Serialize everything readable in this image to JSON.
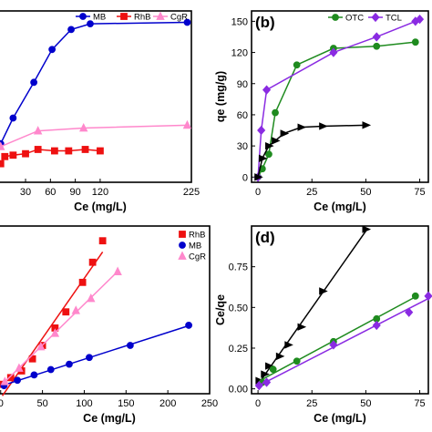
{
  "chart_data": [
    {
      "panel": "",
      "type": "line",
      "xlabel": "Ce (mg/L)",
      "ylabel": "",
      "xlim": [
        0,
        225
      ],
      "xticks": [
        "30",
        "60",
        "90",
        "120",
        "225"
      ],
      "legend": "top",
      "series": [
        {
          "name": "MB",
          "color": "#0000cc",
          "marker": "circle",
          "points": [
            [
              0,
              42
            ],
            [
              15,
              60
            ],
            [
              40,
              85
            ],
            [
              62,
              108
            ],
            [
              85,
              122
            ],
            [
              108,
              126
            ],
            [
              225,
              127
            ]
          ]
        },
        {
          "name": "RhB",
          "color": "#ee1111",
          "marker": "square",
          "points": [
            [
              0,
              28
            ],
            [
              5,
              33
            ],
            [
              15,
              34
            ],
            [
              30,
              35
            ],
            [
              45,
              38
            ],
            [
              65,
              37
            ],
            [
              82,
              37
            ],
            [
              102,
              38
            ],
            [
              120,
              37
            ]
          ]
        },
        {
          "name": "CgR",
          "color": "#ff88cc",
          "marker": "triangle",
          "points": [
            [
              0,
              40
            ],
            [
              45,
              51
            ],
            [
              100,
              53
            ],
            [
              225,
              55
            ]
          ]
        }
      ]
    },
    {
      "panel": "(b)",
      "type": "line",
      "xlabel": "Ce (mg/L)",
      "ylabel": "qe (mg/g)",
      "xlim": [
        0,
        75
      ],
      "ylim": [
        0,
        160
      ],
      "xticks": [
        0,
        25,
        50,
        75
      ],
      "yticks": [
        0,
        30,
        60,
        90,
        120,
        150
      ],
      "legend": "top",
      "series": [
        {
          "name": "OTC",
          "color": "#1f8b1f",
          "marker": "circle",
          "points": [
            [
              0,
              0
            ],
            [
              2,
              8
            ],
            [
              5,
              22
            ],
            [
              8,
              62
            ],
            [
              18,
              108
            ],
            [
              35,
              124
            ],
            [
              55,
              126
            ],
            [
              73,
              130
            ]
          ]
        },
        {
          "name": "TCL",
          "color": "#8a2be2",
          "marker": "diamond",
          "points": [
            [
              0,
              0
            ],
            [
              1.5,
              45
            ],
            [
              4,
              84
            ],
            [
              35,
              120
            ],
            [
              55,
              135
            ],
            [
              73,
              150
            ],
            [
              75,
              152
            ]
          ]
        },
        {
          "name": "",
          "color": "#000000",
          "marker": "right-triangle",
          "points": [
            [
              0,
              0
            ],
            [
              2,
              18
            ],
            [
              5,
              30
            ],
            [
              8,
              35
            ],
            [
              12,
              42
            ],
            [
              20,
              48
            ],
            [
              30,
              49
            ],
            [
              50,
              50
            ]
          ]
        }
      ]
    },
    {
      "panel": "",
      "type": "scatter",
      "xlabel": "Ce (mg/L)",
      "ylabel": "",
      "xlim": [
        0,
        250
      ],
      "xticks": [
        0,
        50,
        100,
        150,
        200,
        250
      ],
      "legend": "top-right",
      "series": [
        {
          "name": "RhB",
          "color": "#ee1111",
          "marker": "square",
          "points": [
            [
              2,
              0.02
            ],
            [
              12,
              0.07
            ],
            [
              25,
              0.12
            ],
            [
              38,
              0.21
            ],
            [
              50,
              0.31
            ],
            [
              65,
              0.44
            ],
            [
              78,
              0.56
            ],
            [
              98,
              0.78
            ],
            [
              110,
              0.93
            ],
            [
              122,
              1.09
            ]
          ]
        },
        {
          "name": "MB",
          "color": "#0000cc",
          "marker": "circle",
          "points": [
            [
              4,
              0.01
            ],
            [
              20,
              0.05
            ],
            [
              40,
              0.09
            ],
            [
              60,
              0.13
            ],
            [
              82,
              0.17
            ],
            [
              106,
              0.22
            ],
            [
              155,
              0.31
            ],
            [
              225,
              0.46
            ]
          ]
        },
        {
          "name": "CgR",
          "color": "#ff88cc",
          "marker": "triangle",
          "points": [
            [
              5,
              0.04
            ],
            [
              22,
              0.14
            ],
            [
              48,
              0.3
            ],
            [
              65,
              0.4
            ],
            [
              90,
              0.57
            ],
            [
              108,
              0.66
            ],
            [
              140,
              0.86
            ]
          ]
        }
      ]
    },
    {
      "panel": "(d)",
      "type": "scatter",
      "xlabel": "Ce (mg/L)",
      "ylabel": "Ce/qe",
      "xlim": [
        -3,
        79
      ],
      "ylim": [
        -0.03,
        1.0
      ],
      "xticks": [
        0,
        25,
        50,
        75
      ],
      "yticks": [
        "0.00",
        "0.25",
        "0.50",
        "0.75"
      ],
      "series": [
        {
          "name": "",
          "color": "#000000",
          "marker": "right-triangle",
          "points": [
            [
              0.5,
              0.05
            ],
            [
              3,
              0.09
            ],
            [
              5,
              0.14
            ],
            [
              10,
              0.2
            ],
            [
              14,
              0.27
            ],
            [
              20,
              0.38
            ],
            [
              30,
              0.6
            ],
            [
              50,
              0.98
            ]
          ]
        },
        {
          "name": "",
          "color": "#1f8b1f",
          "marker": "circle",
          "points": [
            [
              2,
              0.04
            ],
            [
              7,
              0.12
            ],
            [
              18,
              0.17
            ],
            [
              35,
              0.29
            ],
            [
              55,
              0.43
            ],
            [
              73,
              0.57
            ]
          ]
        },
        {
          "name": "",
          "color": "#8a2be2",
          "marker": "diamond",
          "points": [
            [
              0.5,
              0.02
            ],
            [
              4,
              0.04
            ],
            [
              35,
              0.27
            ],
            [
              55,
              0.39
            ],
            [
              70,
              0.47
            ],
            [
              79,
              0.57
            ]
          ]
        }
      ]
    }
  ]
}
